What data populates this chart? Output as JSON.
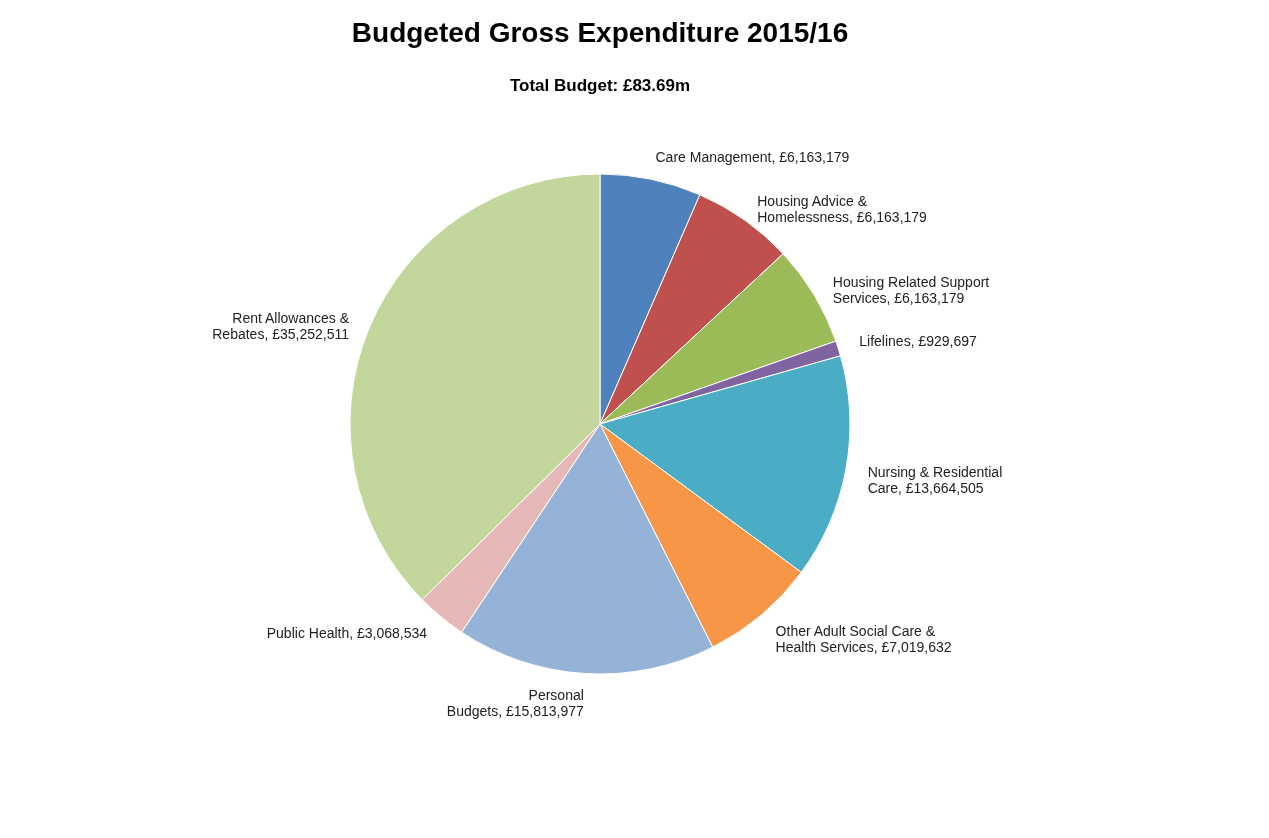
{
  "chart_data": {
    "type": "pie",
    "title": "Budgeted Gross Expenditure 2015/16",
    "subtitle": "Total Budget: £83.69m",
    "categories": [
      "Care Management",
      "Housing Advice & Homelessness",
      "Housing Related Support Services",
      "Lifelines",
      "Nursing & Residential Care",
      "Other Adult Social Care & Health Services",
      "Personal Budgets",
      "Public Health",
      "Rent Allowances & Rebates"
    ],
    "values": [
      6163179,
      6163179,
      6163179,
      929697,
      13664505,
      7019632,
      15813977,
      3068534,
      35252511
    ],
    "value_labels": [
      "£6,163,179",
      "£6,163,179",
      "£6,163,179",
      "£929,697",
      "£13,664,505",
      "£7,019,632",
      "£15,813,977",
      "£3,068,534",
      "£35,252,511"
    ],
    "colors": [
      "#4f81bd",
      "#c0504d",
      "#9bbb59",
      "#8064a2",
      "#4bacc6",
      "#f79646",
      "#95b3d7",
      "#e6b9b8",
      "#c3d69b"
    ],
    "legend": false
  }
}
